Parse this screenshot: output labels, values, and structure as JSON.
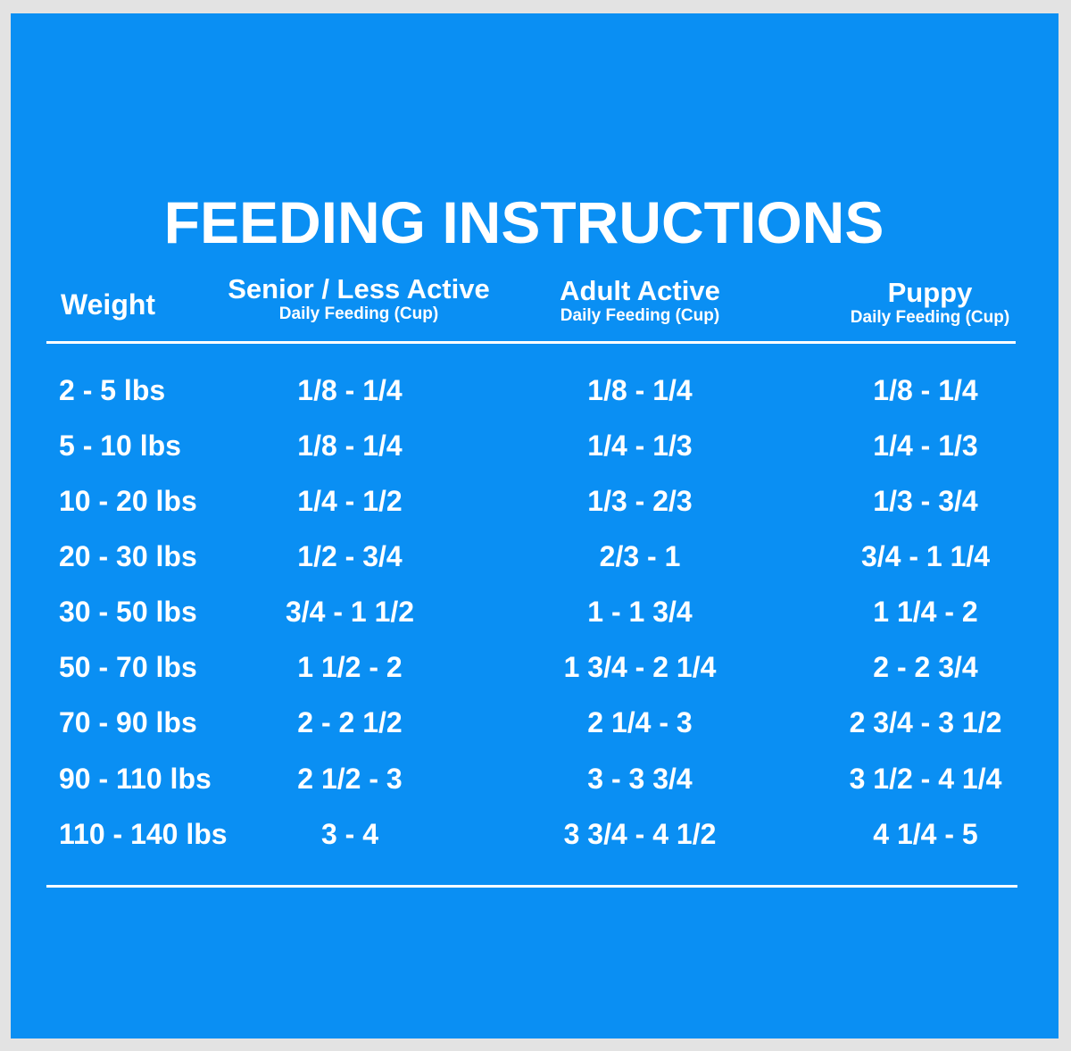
{
  "title": "FEEDING INSTRUCTIONS",
  "colors": {
    "background": "#0a8ff3",
    "text": "#ffffff",
    "frame": "#e3e3e3"
  },
  "headers": {
    "weight": "Weight",
    "senior": {
      "main": "Senior / Less Active",
      "sub": "Daily Feeding (Cup)"
    },
    "adult": {
      "main": "Adult Active",
      "sub": "Daily Feeding (Cup)"
    },
    "puppy": {
      "main": "Puppy",
      "sub": "Daily Feeding (Cup)"
    }
  },
  "rows": [
    {
      "weight": "2 - 5 lbs",
      "senior": "1/8 - 1/4",
      "adult": "1/8 - 1/4",
      "puppy": "1/8 - 1/4"
    },
    {
      "weight": "5 - 10 lbs",
      "senior": "1/8 - 1/4",
      "adult": "1/4 - 1/3",
      "puppy": "1/4 - 1/3"
    },
    {
      "weight": "10 - 20 lbs",
      "senior": "1/4 - 1/2",
      "adult": "1/3 - 2/3",
      "puppy": "1/3 - 3/4"
    },
    {
      "weight": "20 - 30 lbs",
      "senior": "1/2 - 3/4",
      "adult": "2/3 - 1",
      "puppy": "3/4 - 1 1/4"
    },
    {
      "weight": "30 - 50 lbs",
      "senior": "3/4 - 1 1/2",
      "adult": "1 - 1 3/4",
      "puppy": "1 1/4 - 2"
    },
    {
      "weight": "50 - 70 lbs",
      "senior": "1 1/2 - 2",
      "adult": "1 3/4 - 2 1/4",
      "puppy": "2 - 2 3/4"
    },
    {
      "weight": "70 - 90 lbs",
      "senior": "2 - 2 1/2",
      "adult": "2 1/4 - 3",
      "puppy": "2 3/4 - 3 1/2"
    },
    {
      "weight": "90 - 110 lbs",
      "senior": "2 1/2 - 3",
      "adult": "3 - 3 3/4",
      "puppy": "3 1/2 - 4 1/4"
    },
    {
      "weight": "110 - 140 lbs",
      "senior": "3 - 4",
      "adult": "3 3/4 - 4 1/2",
      "puppy": "4 1/4 - 5"
    }
  ]
}
